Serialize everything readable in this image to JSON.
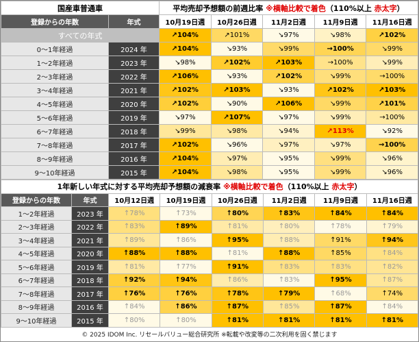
{
  "top": {
    "corner": "国産車普通車",
    "title": [
      "平均売却予想額の前週比率 ",
      "※横軸比較で着色",
      "（110%以上 ",
      "赤太字",
      "）"
    ],
    "header": {
      "registration": "登録からの年数",
      "model_year": "年式",
      "weeks": [
        "10月19日週",
        "10月26日週",
        "11月2日週",
        "11月9日週",
        "11月16日週"
      ]
    },
    "all_row": {
      "label": "すべての年式",
      "values": [
        "↗104%",
        "↗101%",
        "↘97%",
        "↘98%",
        "↗102%"
      ]
    },
    "rows": [
      {
        "age": "0〜1年経過",
        "year": "2024 年",
        "values": [
          "↗104%",
          "↘93%",
          "↘99%",
          "→100%",
          "↘99%"
        ]
      },
      {
        "age": "1〜2年経過",
        "year": "2023 年",
        "values": [
          "↘98%",
          "↗102%",
          "↗103%",
          "→100%",
          "↘99%"
        ]
      },
      {
        "age": "2〜3年経過",
        "year": "2022 年",
        "values": [
          "↗106%",
          "↘93%",
          "↗102%",
          "↘99%",
          "→100%"
        ]
      },
      {
        "age": "3〜4年経過",
        "year": "2021 年",
        "values": [
          "↗102%",
          "↗103%",
          "↘93%",
          "↗102%",
          "↗103%"
        ]
      },
      {
        "age": "4〜5年経過",
        "year": "2020 年",
        "values": [
          "↗102%",
          "↘90%",
          "↗106%",
          "↘99%",
          "↗101%"
        ]
      },
      {
        "age": "5〜6年経過",
        "year": "2019 年",
        "values": [
          "↘97%",
          "↗107%",
          "↘97%",
          "↘99%",
          "→100%"
        ]
      },
      {
        "age": "6〜7年経過",
        "year": "2018 年",
        "values": [
          "↘99%",
          "↘98%",
          "↘94%",
          "↗113%",
          "↘92%"
        ]
      },
      {
        "age": "7〜8年経過",
        "year": "2017 年",
        "values": [
          "↗102%",
          "↘96%",
          "↘97%",
          "↘97%",
          "→100%"
        ]
      },
      {
        "age": "8〜9年経過",
        "year": "2016 年",
        "values": [
          "↗104%",
          "↘97%",
          "↘95%",
          "↘99%",
          "↘96%"
        ]
      },
      {
        "age": "9〜10年経過",
        "year": "2015 年",
        "values": [
          "↗104%",
          "↘98%",
          "↘95%",
          "↘99%",
          "↘96%"
        ]
      }
    ]
  },
  "bottom": {
    "title": [
      "1年新しい年式に対する平均売却予想額の減衰率 ",
      "※横軸比較で着色",
      "（110%以上 ",
      "赤太字",
      "）"
    ],
    "header": {
      "registration": "登録からの年数",
      "model_year": "年式",
      "weeks": [
        "10月12日週",
        "10月19日週",
        "10月26日週",
        "11月2日週",
        "11月9日週",
        "11月16日週"
      ]
    },
    "rows": [
      {
        "age": "1〜2年経過",
        "year": "2023 年",
        "values": [
          "↑78%",
          "↑73%",
          "↑80%",
          "↑83%",
          "↑84%",
          "↑84%"
        ]
      },
      {
        "age": "2〜3年経過",
        "year": "2022 年",
        "values": [
          "↑83%",
          "↑89%",
          "↑81%",
          "↑80%",
          "↑78%",
          "↑79%"
        ]
      },
      {
        "age": "3〜4年経過",
        "year": "2021 年",
        "values": [
          "↑89%",
          "↑86%",
          "↑95%",
          "↑88%",
          "↑91%",
          "↑94%"
        ]
      },
      {
        "age": "4〜5年経過",
        "year": "2020 年",
        "values": [
          "↑88%",
          "↑88%",
          "↑81%",
          "↑88%",
          "↑85%",
          "↑84%"
        ]
      },
      {
        "age": "5〜6年経過",
        "year": "2019 年",
        "values": [
          "↑81%",
          "↑77%",
          "↑91%",
          "↑83%",
          "↑83%",
          "↑82%"
        ]
      },
      {
        "age": "6〜7年経過",
        "year": "2018 年",
        "values": [
          "↑92%",
          "↑94%",
          "↑86%",
          "↑83%",
          "↑95%",
          "↑87%"
        ]
      },
      {
        "age": "7〜8年経過",
        "year": "2017 年",
        "values": [
          "↑76%",
          "↑76%",
          "↑78%",
          "↑79%",
          "↑68%",
          "↑74%"
        ]
      },
      {
        "age": "8〜9年経過",
        "year": "2016 年",
        "values": [
          "↑84%",
          "↑86%",
          "↑87%",
          "↑85%",
          "↑87%",
          "↑84%"
        ]
      },
      {
        "age": "9〜10年経過",
        "year": "2015 年",
        "values": [
          "↑80%",
          "↑80%",
          "↑81%",
          "↑81%",
          "↑81%",
          "↑81%"
        ]
      }
    ]
  },
  "footer": "© 2025 IDOM Inc. リセールバリュー総合研究所 ※転載や改変等の二次利用を固く禁じます"
}
